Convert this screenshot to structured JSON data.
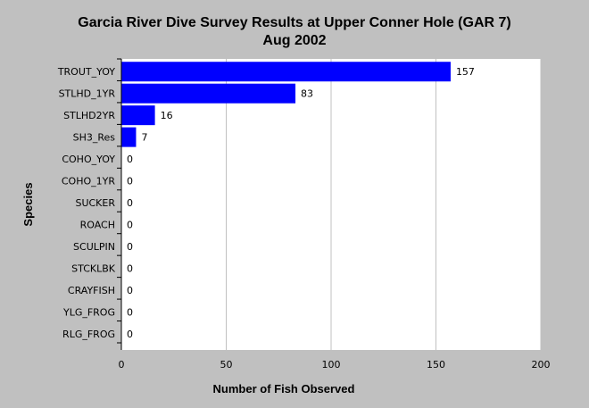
{
  "chart_data": {
    "type": "bar",
    "orientation": "horizontal",
    "title": "Garcia River Dive Survey Results at Upper Conner Hole (GAR 7)",
    "subtitle": "Aug 2002",
    "xlabel": "Number of Fish Observed",
    "ylabel": "Species",
    "categories": [
      "TROUT_YOY",
      "STLHD_1YR",
      "STLHD2YR",
      "SH3_Res",
      "COHO_YOY",
      "COHO_1YR",
      "SUCKER",
      "ROACH",
      "SCULPIN",
      "STCKLBK",
      "CRAYFISH",
      "YLG_FROG",
      "RLG_FROG"
    ],
    "values": [
      157,
      83,
      16,
      7,
      0,
      0,
      0,
      0,
      0,
      0,
      0,
      0,
      0
    ],
    "xlim": [
      0,
      200
    ],
    "xticks": [
      0,
      50,
      100,
      150,
      200
    ],
    "grid": true,
    "legend": "none",
    "colors": {
      "bar": "#0000ff",
      "plot_background": "#ffffff",
      "page_background": "#c0c0c0",
      "grid": "#c0c0c0"
    }
  }
}
